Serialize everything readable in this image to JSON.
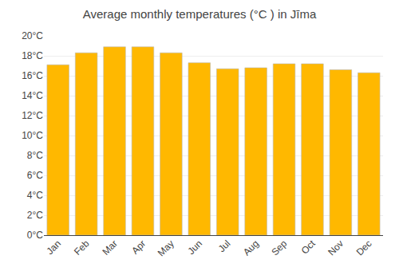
{
  "chart_data": {
    "type": "bar",
    "title": "Average monthly temperatures (°C ) in Jīma",
    "categories": [
      "Jan",
      "Feb",
      "Mar",
      "Apr",
      "May",
      "Jun",
      "Jul",
      "Aug",
      "Sep",
      "Oct",
      "Nov",
      "Dec"
    ],
    "values": [
      17.1,
      18.3,
      18.9,
      18.9,
      18.3,
      17.3,
      16.7,
      16.8,
      17.2,
      17.2,
      16.6,
      16.3
    ],
    "color": "#FFB800",
    "ylim": [
      0,
      20
    ],
    "yticks": [
      {
        "value": 0,
        "label": "0°C"
      },
      {
        "value": 2,
        "label": "2°C"
      },
      {
        "value": 4,
        "label": "4°C"
      },
      {
        "value": 6,
        "label": "6°C"
      },
      {
        "value": 8,
        "label": "8°C"
      },
      {
        "value": 10,
        "label": "10°C"
      },
      {
        "value": 12,
        "label": "12°C"
      },
      {
        "value": 14,
        "label": "14°C"
      },
      {
        "value": 16,
        "label": "16°C"
      },
      {
        "value": 18,
        "label": "18°C"
      },
      {
        "value": 20,
        "label": "20°C"
      }
    ],
    "grid": true
  }
}
